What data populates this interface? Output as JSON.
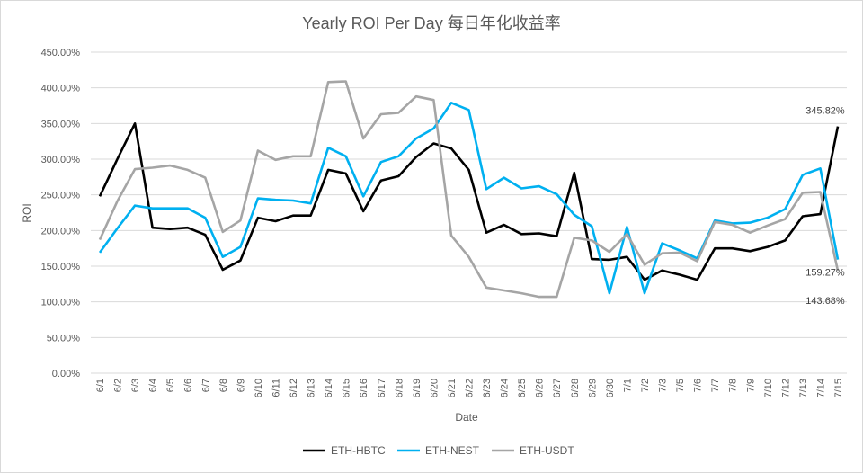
{
  "chart_data": {
    "type": "line",
    "title": "Yearly ROI Per Day 每日年化收益率",
    "xlabel": "Date",
    "ylabel": "ROI",
    "ylim": [
      0,
      450
    ],
    "ytick_step": 50,
    "ytick_format": "percent_2dp",
    "grid": "horizontal",
    "legend": "bottom",
    "categories": [
      "6/1",
      "6/2",
      "6/3",
      "6/4",
      "6/5",
      "6/6",
      "6/7",
      "6/8",
      "6/9",
      "6/10",
      "6/11",
      "6/12",
      "6/13",
      "6/14",
      "6/15",
      "6/16",
      "6/17",
      "6/18",
      "6/19",
      "6/20",
      "6/21",
      "6/22",
      "6/23",
      "6/24",
      "6/25",
      "6/26",
      "6/27",
      "6/28",
      "6/29",
      "6/30",
      "7/1",
      "7/2",
      "7/3",
      "7/5",
      "7/6",
      "7/7",
      "7/8",
      "7/9",
      "7/10",
      "7/12",
      "7/13",
      "7/14",
      "7/15"
    ],
    "series": [
      {
        "name": "ETH-HBTC",
        "color": "#000000",
        "values": [
          248,
          300,
          350,
          204,
          202,
          204,
          194,
          145,
          158,
          218,
          213,
          221,
          221,
          285,
          280,
          227,
          270,
          276,
          303,
          322,
          315,
          285,
          197,
          208,
          195,
          196,
          192,
          281,
          160,
          159,
          163,
          131,
          144,
          138,
          131,
          175,
          175,
          171,
          177,
          186,
          220,
          223,
          345.82
        ],
        "end_label": "345.82%"
      },
      {
        "name": "ETH-NEST",
        "color": "#00B0F0",
        "values": [
          169,
          203,
          235,
          231,
          231,
          231,
          218,
          163,
          177,
          245,
          243,
          242,
          238,
          316,
          304,
          248,
          296,
          304,
          329,
          343,
          379,
          369,
          258,
          274,
          259,
          262,
          251,
          222,
          206,
          112,
          205,
          112,
          182,
          172,
          161,
          214,
          210,
          211,
          218,
          230,
          278,
          287,
          159.27
        ],
        "end_label": "159.27%"
      },
      {
        "name": "ETH-USDT",
        "color": "#A5A5A5",
        "values": [
          187,
          241,
          286,
          288,
          291,
          285,
          274,
          198,
          214,
          312,
          299,
          304,
          304,
          408,
          409,
          329,
          363,
          365,
          388,
          383,
          193,
          163,
          120,
          116,
          112,
          107,
          107,
          190,
          186,
          170,
          195,
          152,
          168,
          169,
          157,
          212,
          208,
          197,
          207,
          216,
          253,
          254,
          143.68
        ],
        "end_label": "143.68%"
      }
    ]
  }
}
